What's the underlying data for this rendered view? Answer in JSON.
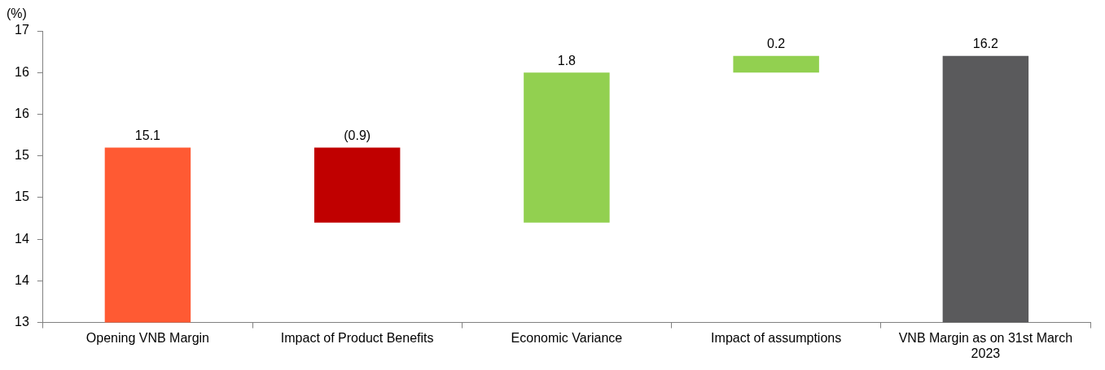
{
  "chart_data": {
    "type": "bar",
    "ylabel": "(%)",
    "categories": [
      "Opening VNB Margin",
      "Impact of Product Benefits",
      "Economic Variance",
      "Impact of assumptions",
      "VNB Margin as on 31st March 2023"
    ],
    "base": [
      0,
      15.1,
      14.2,
      16.0,
      0
    ],
    "values": [
      15.1,
      -0.9,
      1.8,
      0.2,
      16.2
    ],
    "colors": [
      "#ff5a33",
      "#c00000",
      "#92d050",
      "#92d050",
      "#5a5a5c"
    ],
    "value_labels": [
      "15.1",
      "(0.9)",
      "1.8",
      "0.2",
      "16.2"
    ],
    "ylim": [
      13,
      16.5
    ],
    "yticks": [
      13,
      {
        "value": 13.5,
        "label": "14"
      },
      {
        "value": 14,
        "label": "14"
      },
      {
        "value": 14.5,
        "label": "15"
      },
      {
        "value": 15,
        "label": "15"
      },
      {
        "value": 15.5,
        "label": "16"
      },
      {
        "value": 16,
        "label": "16"
      },
      {
        "value": 16.5,
        "label": "17"
      }
    ],
    "grid": false,
    "legend": false
  }
}
